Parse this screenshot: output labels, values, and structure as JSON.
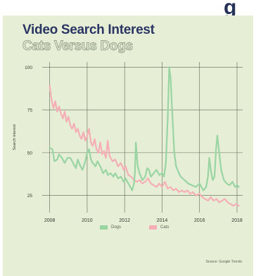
{
  "header_glyph": "g",
  "chart_data": {
    "type": "line",
    "title": "Video Search Interest",
    "subtitle": "Cats Versus Dogs",
    "xlabel": "",
    "ylabel": "Search interest",
    "xlim": [
      2007.6,
      2018.3
    ],
    "ylim": [
      15,
      103
    ],
    "yticks": [
      25,
      50,
      75,
      100
    ],
    "xticks": [
      2008,
      2010,
      2012,
      2014,
      2016,
      2018
    ],
    "grid": true,
    "legend": "bottom-center",
    "source": "Source: Google Trends",
    "colors": {
      "Dogs": "#99d4a3",
      "Cats": "#f5aeb6",
      "grid": "#5c6651",
      "background": "#e6efd5"
    },
    "series": [
      {
        "name": "Dogs",
        "points": [
          [
            2008.0,
            53
          ],
          [
            2008.15,
            52
          ],
          [
            2008.25,
            45
          ],
          [
            2008.4,
            46
          ],
          [
            2008.5,
            49
          ],
          [
            2008.65,
            47
          ],
          [
            2008.8,
            44
          ],
          [
            2008.95,
            47
          ],
          [
            2009.1,
            47
          ],
          [
            2009.25,
            44
          ],
          [
            2009.4,
            41
          ],
          [
            2009.5,
            46
          ],
          [
            2009.6,
            43
          ],
          [
            2009.75,
            40
          ],
          [
            2009.9,
            45
          ],
          [
            2010.0,
            50
          ],
          [
            2010.1,
            52
          ],
          [
            2010.2,
            46
          ],
          [
            2010.3,
            44
          ],
          [
            2010.45,
            42
          ],
          [
            2010.55,
            45
          ],
          [
            2010.7,
            42
          ],
          [
            2010.85,
            38
          ],
          [
            2011.0,
            40
          ],
          [
            2011.1,
            37
          ],
          [
            2011.25,
            38
          ],
          [
            2011.4,
            36
          ],
          [
            2011.5,
            38
          ],
          [
            2011.65,
            35
          ],
          [
            2011.8,
            36
          ],
          [
            2011.95,
            33
          ],
          [
            2012.05,
            35
          ],
          [
            2012.2,
            32
          ],
          [
            2012.3,
            30
          ],
          [
            2012.4,
            28
          ],
          [
            2012.5,
            32
          ],
          [
            2012.55,
            38
          ],
          [
            2012.6,
            56
          ],
          [
            2012.7,
            42
          ],
          [
            2012.8,
            38
          ],
          [
            2012.95,
            34
          ],
          [
            2013.1,
            36
          ],
          [
            2013.2,
            41
          ],
          [
            2013.3,
            40
          ],
          [
            2013.4,
            36
          ],
          [
            2013.55,
            38
          ],
          [
            2013.7,
            40
          ],
          [
            2013.85,
            37
          ],
          [
            2014.0,
            38
          ],
          [
            2014.1,
            36
          ],
          [
            2014.2,
            44
          ],
          [
            2014.3,
            70
          ],
          [
            2014.38,
            100
          ],
          [
            2014.45,
            94
          ],
          [
            2014.55,
            72
          ],
          [
            2014.65,
            50
          ],
          [
            2014.75,
            42
          ],
          [
            2014.9,
            38
          ],
          [
            2015.0,
            36
          ],
          [
            2015.2,
            34
          ],
          [
            2015.4,
            32
          ],
          [
            2015.6,
            31
          ],
          [
            2015.8,
            30
          ],
          [
            2016.0,
            32
          ],
          [
            2016.2,
            28
          ],
          [
            2016.35,
            30
          ],
          [
            2016.45,
            36
          ],
          [
            2016.52,
            47
          ],
          [
            2016.6,
            40
          ],
          [
            2016.7,
            34
          ],
          [
            2016.8,
            36
          ],
          [
            2016.88,
            52
          ],
          [
            2016.95,
            60
          ],
          [
            2017.05,
            50
          ],
          [
            2017.15,
            40
          ],
          [
            2017.3,
            34
          ],
          [
            2017.45,
            32
          ],
          [
            2017.6,
            31
          ],
          [
            2017.75,
            33
          ],
          [
            2017.9,
            30
          ],
          [
            2018.0,
            31
          ],
          [
            2018.1,
            30
          ]
        ]
      },
      {
        "name": "Cats",
        "points": [
          [
            2008.0,
            89
          ],
          [
            2008.1,
            81
          ],
          [
            2008.2,
            76
          ],
          [
            2008.3,
            80
          ],
          [
            2008.4,
            74
          ],
          [
            2008.5,
            77
          ],
          [
            2008.6,
            73
          ],
          [
            2008.7,
            70
          ],
          [
            2008.8,
            74
          ],
          [
            2008.9,
            68
          ],
          [
            2009.0,
            71
          ],
          [
            2009.1,
            66
          ],
          [
            2009.2,
            64
          ],
          [
            2009.3,
            67
          ],
          [
            2009.4,
            62
          ],
          [
            2009.5,
            64
          ],
          [
            2009.6,
            60
          ],
          [
            2009.7,
            58
          ],
          [
            2009.8,
            62
          ],
          [
            2009.9,
            57
          ],
          [
            2010.0,
            60
          ],
          [
            2010.1,
            64
          ],
          [
            2010.2,
            56
          ],
          [
            2010.3,
            54
          ],
          [
            2010.4,
            58
          ],
          [
            2010.5,
            52
          ],
          [
            2010.6,
            50
          ],
          [
            2010.7,
            56
          ],
          [
            2010.8,
            49
          ],
          [
            2010.9,
            51
          ],
          [
            2011.0,
            47
          ],
          [
            2011.1,
            57
          ],
          [
            2011.2,
            48
          ],
          [
            2011.35,
            45
          ],
          [
            2011.5,
            46
          ],
          [
            2011.65,
            42
          ],
          [
            2011.8,
            44
          ],
          [
            2011.95,
            40
          ],
          [
            2012.05,
            42
          ],
          [
            2012.2,
            37
          ],
          [
            2012.35,
            36
          ],
          [
            2012.5,
            34
          ],
          [
            2012.65,
            33
          ],
          [
            2012.8,
            34
          ],
          [
            2012.95,
            32
          ],
          [
            2013.1,
            33
          ],
          [
            2013.25,
            35
          ],
          [
            2013.4,
            32
          ],
          [
            2013.55,
            31
          ],
          [
            2013.7,
            30
          ],
          [
            2013.85,
            32
          ],
          [
            2014.0,
            30
          ],
          [
            2014.15,
            33
          ],
          [
            2014.3,
            29
          ],
          [
            2014.45,
            30
          ],
          [
            2014.6,
            28
          ],
          [
            2014.75,
            29
          ],
          [
            2014.9,
            27
          ],
          [
            2015.05,
            28
          ],
          [
            2015.2,
            27
          ],
          [
            2015.35,
            28
          ],
          [
            2015.5,
            26
          ],
          [
            2015.65,
            27
          ],
          [
            2015.8,
            25
          ],
          [
            2016.0,
            26
          ],
          [
            2016.15,
            24
          ],
          [
            2016.3,
            23
          ],
          [
            2016.45,
            22
          ],
          [
            2016.6,
            24
          ],
          [
            2016.75,
            22
          ],
          [
            2016.9,
            23
          ],
          [
            2017.05,
            21
          ],
          [
            2017.2,
            22
          ],
          [
            2017.35,
            23
          ],
          [
            2017.5,
            21
          ],
          [
            2017.65,
            20
          ],
          [
            2017.8,
            19
          ],
          [
            2017.95,
            20
          ],
          [
            2018.1,
            19
          ]
        ]
      }
    ]
  }
}
